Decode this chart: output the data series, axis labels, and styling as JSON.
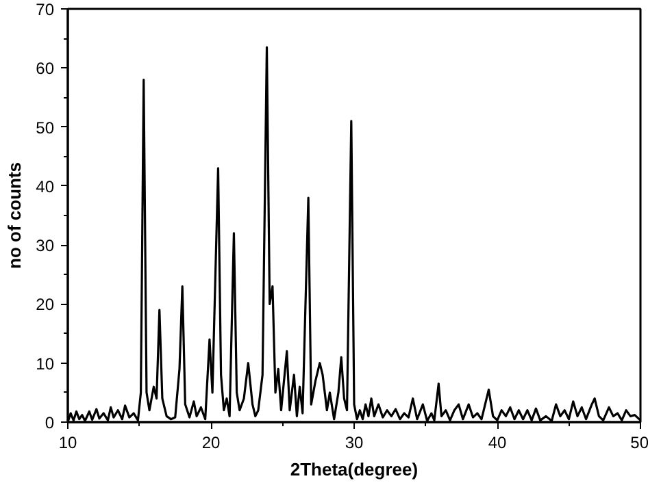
{
  "chart_data": {
    "type": "line",
    "xlabel": "2Theta(degree)",
    "ylabel": "no of counts",
    "xlim": [
      10,
      50
    ],
    "ylim": [
      0,
      70
    ],
    "xticks": [
      10,
      20,
      30,
      40,
      50
    ],
    "yticks": [
      0,
      10,
      20,
      30,
      40,
      50,
      60,
      70
    ],
    "grid": false,
    "marker": "none",
    "line_style": "solid",
    "series": [
      {
        "color": "#000000",
        "x": [
          10.0,
          10.2,
          10.4,
          10.6,
          10.8,
          11.0,
          11.2,
          11.5,
          11.7,
          12.0,
          12.2,
          12.5,
          12.8,
          13.0,
          13.2,
          13.5,
          13.8,
          14.0,
          14.3,
          14.6,
          14.9,
          15.1,
          15.3,
          15.5,
          15.7,
          16.0,
          16.2,
          16.4,
          16.6,
          16.9,
          17.2,
          17.5,
          17.8,
          18.0,
          18.2,
          18.5,
          18.8,
          19.0,
          19.3,
          19.6,
          19.9,
          20.1,
          20.5,
          20.7,
          20.9,
          21.1,
          21.3,
          21.6,
          21.8,
          22.0,
          22.3,
          22.6,
          22.9,
          23.1,
          23.3,
          23.6,
          23.9,
          24.1,
          24.3,
          24.5,
          24.7,
          24.9,
          25.3,
          25.5,
          25.8,
          26.0,
          26.2,
          26.4,
          26.8,
          27.0,
          27.3,
          27.6,
          27.8,
          28.1,
          28.3,
          28.6,
          28.9,
          29.1,
          29.3,
          29.5,
          29.8,
          30.0,
          30.2,
          30.4,
          30.6,
          30.8,
          31.0,
          31.2,
          31.4,
          31.7,
          32.0,
          32.3,
          32.6,
          32.9,
          33.2,
          33.5,
          33.8,
          34.1,
          34.4,
          34.8,
          35.1,
          35.4,
          35.6,
          35.9,
          36.1,
          36.4,
          36.7,
          37.0,
          37.3,
          37.6,
          38.0,
          38.3,
          38.6,
          38.9,
          39.4,
          39.7,
          40.0,
          40.3,
          40.6,
          40.9,
          41.2,
          41.5,
          41.8,
          42.1,
          42.4,
          42.7,
          43.0,
          43.4,
          43.8,
          44.1,
          44.4,
          44.7,
          45.0,
          45.3,
          45.6,
          45.9,
          46.2,
          46.6,
          46.8,
          47.1,
          47.4,
          47.8,
          48.1,
          48.4,
          48.7,
          49.0,
          49.3,
          49.6,
          50.0
        ],
        "values": [
          0,
          1.5,
          0.3,
          1.8,
          0.5,
          1.2,
          0.2,
          1.8,
          0.4,
          2.2,
          0.6,
          1.5,
          0.3,
          2.5,
          0.8,
          2.0,
          0.5,
          2.8,
          0.8,
          1.5,
          0.3,
          5,
          58,
          5,
          2,
          6,
          4,
          19,
          4,
          1,
          0.5,
          0.8,
          9,
          23,
          3,
          0.8,
          3.5,
          1,
          2.5,
          0.5,
          14,
          5,
          43,
          8,
          2,
          4,
          1,
          32,
          5,
          2,
          4,
          10,
          3,
          1,
          2,
          8,
          63.5,
          20,
          23,
          5,
          9,
          2,
          12,
          2,
          8,
          1,
          6,
          1.5,
          38,
          3,
          7,
          10,
          8,
          2,
          5,
          0.5,
          5,
          11,
          4,
          2,
          51,
          3,
          0.5,
          2,
          0.5,
          3,
          1,
          4,
          1,
          3,
          0.8,
          2,
          1,
          2.2,
          0.5,
          1.5,
          0.8,
          4,
          0.5,
          3,
          0.2,
          1.5,
          0.3,
          6.5,
          1,
          2,
          0.3,
          2,
          3,
          0.5,
          3,
          0.8,
          1.5,
          0.5,
          5.5,
          1,
          0.3,
          2,
          1,
          2.5,
          0.5,
          2,
          0.5,
          2,
          0.3,
          2.3,
          0.3,
          1,
          0.2,
          3,
          1,
          2,
          0.5,
          3.5,
          1,
          2.5,
          0.5,
          3,
          4,
          1,
          0.3,
          2.5,
          1,
          1.5,
          0.3,
          2,
          1,
          1.2,
          0.3
        ]
      }
    ]
  }
}
